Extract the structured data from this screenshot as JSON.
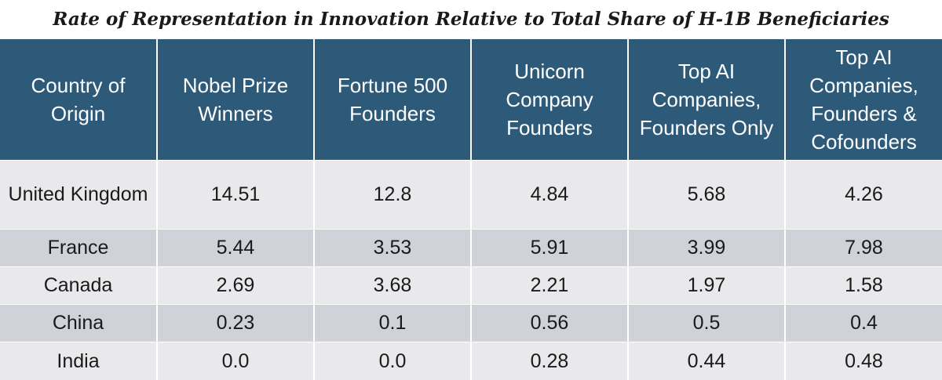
{
  "chart_data": {
    "type": "table",
    "title": "Rate of Representation in Innovation Relative to Total Share of H-1B Beneficiaries",
    "columns": [
      "Country of Origin",
      "Nobel Prize Winners",
      "Fortune 500 Founders",
      "Unicorn Company Founders",
      "Top AI Companies, Founders Only",
      "Top AI Companies, Founders & Cofounders"
    ],
    "rows": [
      [
        "United Kingdom",
        "14.51",
        "12.8",
        "4.84",
        "5.68",
        "4.26"
      ],
      [
        "France",
        "5.44",
        "3.53",
        "5.91",
        "3.99",
        "7.98"
      ],
      [
        "Canada",
        "2.69",
        "3.68",
        "2.21",
        "1.97",
        "1.58"
      ],
      [
        "China",
        "0.23",
        "0.1",
        "0.56",
        "0.5",
        "0.4"
      ],
      [
        "India",
        "0.0",
        "0.0",
        "0.28",
        "0.44",
        "0.48"
      ]
    ]
  },
  "colors": {
    "header_bg": "#2e5a7a",
    "header_text": "#ffffff",
    "row_light": "#e9e9ec",
    "row_dark": "#cfd3d9"
  }
}
